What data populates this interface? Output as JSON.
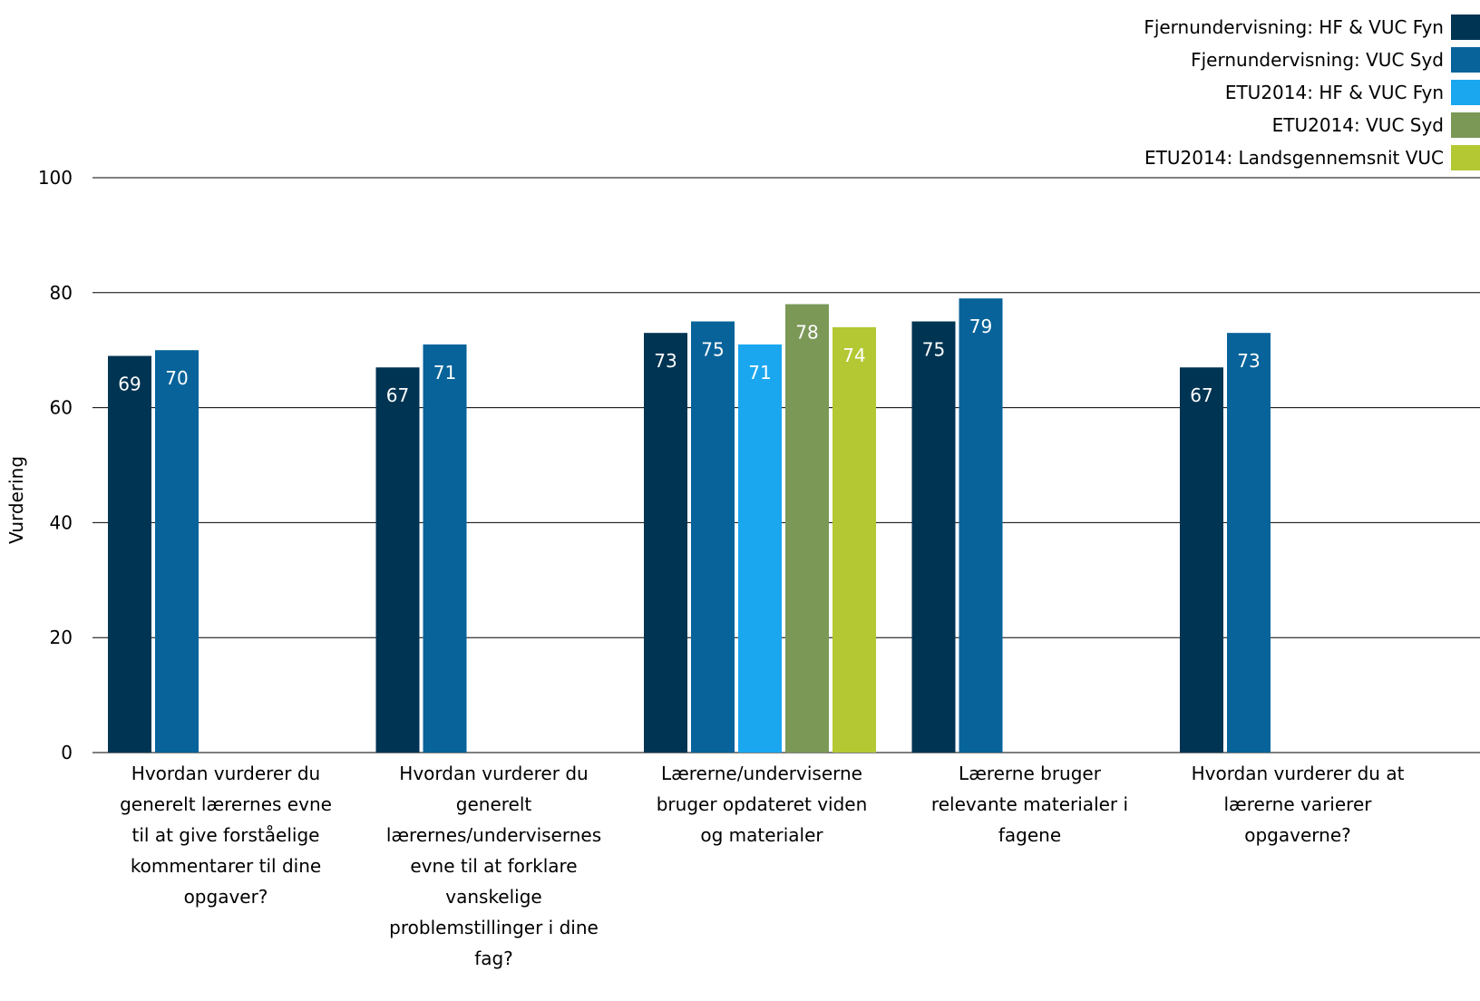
{
  "chart_data": {
    "type": "bar",
    "ylabel": "Vurdering",
    "ylim": [
      0,
      100
    ],
    "yticks": [
      0,
      20,
      40,
      60,
      80,
      100
    ],
    "grid": true,
    "legend_position": "top-right",
    "categories": [
      "Hvordan vurderer du generelt lærernes evne til at give forståelige kommentarer til dine opgaver?",
      "Hvordan vurderer du generelt lærernes/undervisernes evne til at forklare vanskelige problemstillinger i dine fag?",
      "Lærerne/underviserne bruger opdateret viden og materialer",
      "Lærerne bruger relevante materialer i fagene",
      "Hvordan vurderer du at lærerne varierer opgaverne?"
    ],
    "category_lines": [
      [
        "Hvordan vurderer du",
        "generelt lærernes evne",
        "til at give forståelige",
        "kommentarer til dine",
        "opgaver?"
      ],
      [
        "Hvordan vurderer du",
        "generelt",
        "lærernes/undervisernes",
        "evne til at forklare",
        "vanskelige",
        "problemstillinger i dine",
        "fag?"
      ],
      [
        "Lærerne/underviserne",
        "bruger opdateret viden",
        "og materialer"
      ],
      [
        "Lærerne bruger",
        "relevante materialer i",
        "fagene"
      ],
      [
        "Hvordan vurderer du at",
        "lærerne varierer",
        "opgaverne?"
      ]
    ],
    "series": [
      {
        "name": "Fjernundervisning: HF & VUC Fyn",
        "color": "#003453",
        "values": [
          69,
          67,
          73,
          75,
          67
        ],
        "labels": [
          "69",
          "67",
          "73",
          "75",
          "67"
        ]
      },
      {
        "name": "Fjernundervisning: VUC Syd",
        "color": "#07639A",
        "values": [
          70,
          71,
          75,
          79,
          73
        ],
        "labels": [
          "70",
          "71",
          "75",
          "79",
          "73"
        ]
      },
      {
        "name": "ETU2014: HF & VUC Fyn",
        "color": "#1AA7F0",
        "values": [
          null,
          null,
          71,
          null,
          null
        ],
        "labels": [
          null,
          null,
          "71",
          null,
          null
        ]
      },
      {
        "name": "ETU2014: VUC Syd",
        "color": "#7B9857",
        "values": [
          null,
          null,
          78,
          null,
          null
        ],
        "labels": [
          null,
          null,
          "78",
          null,
          null
        ]
      },
      {
        "name": "ETU2014: Landsgennemsnit VUC",
        "color": "#B3C833",
        "values": [
          null,
          null,
          74,
          null,
          null
        ],
        "labels": [
          null,
          null,
          "74",
          null,
          null
        ]
      }
    ]
  }
}
